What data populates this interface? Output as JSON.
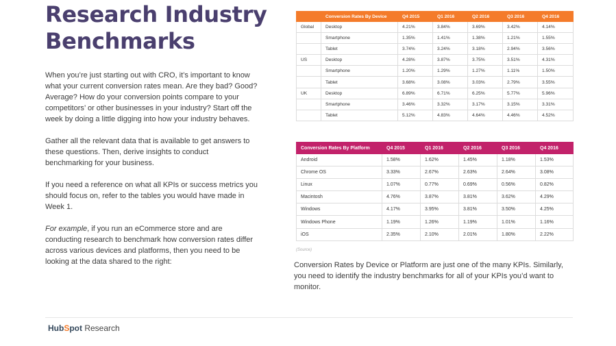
{
  "page": {
    "title_line1": "Research Industry",
    "title_line2": "Benchmarks",
    "paragraph1": "When you’re just starting out with CRO, it’s important to know what your current conversion rates mean. Are they bad? Good? Average? How do your conversion points compare to your competitors’ or other businesses in your industry? Start off the week by doing a little digging into how your industry behaves.",
    "paragraph2": "Gather all the relevant data that is available to get answers to these questions. Then, derive insights to conduct benchmarking for your business.",
    "paragraph3": "If you need a reference on what all KPIs or success metrics you should focus on, refer to the tables you would have made in Week 1.",
    "paragraph4_em": "For example",
    "paragraph4_rest": ", if you run an eCommerce store and are conducting research to benchmark how conversion rates differ across various devices and platforms, then you need to be looking at the data shared to the right:",
    "source_label": "(Source)",
    "note": "Conversion Rates by Device or Platform are just one of the many KPIs. Similarly, you need to identify the industry benchmarks for all of your KPIs you’d want to monitor."
  },
  "device_table": {
    "header_color": "#f47b2a",
    "headers": [
      "",
      "Conversion Rates By Device",
      "Q4 2015",
      "Q1 2016",
      "Q2 2016",
      "Q3 2016",
      "Q4 2016"
    ],
    "rows": [
      [
        "Global",
        "Desktop",
        "4.21%",
        "3.84%",
        "3.69%",
        "3.42%",
        "4.14%"
      ],
      [
        "",
        "Smartphone",
        "1.35%",
        "1.41%",
        "1.38%",
        "1.21%",
        "1.55%"
      ],
      [
        "",
        "Tablet",
        "3.74%",
        "3.24%",
        "3.18%",
        "2.94%",
        "3.56%"
      ],
      [
        "US",
        "Desktop",
        "4.28%",
        "3.87%",
        "3.75%",
        "3.51%",
        "4.31%"
      ],
      [
        "",
        "Smartphone",
        "1.20%",
        "1.29%",
        "1.27%",
        "1.11%",
        "1.50%"
      ],
      [
        "",
        "Tablet",
        "3.68%",
        "3.08%",
        "3.03%",
        "2.79%",
        "3.55%"
      ],
      [
        "UK",
        "Desktop",
        "6.89%",
        "6.71%",
        "6.25%",
        "5.77%",
        "5.96%"
      ],
      [
        "",
        "Smartphone",
        "3.46%",
        "3.32%",
        "3.17%",
        "3.15%",
        "3.31%"
      ],
      [
        "",
        "Tablet",
        "5.12%",
        "4.83%",
        "4.64%",
        "4.46%",
        "4.52%"
      ]
    ]
  },
  "platform_table": {
    "header_color": "#c2226a",
    "headers": [
      "Conversion Rates By Platform",
      "Q4 2015",
      "Q1 2016",
      "Q2 2016",
      "Q3 2016",
      "Q4 2016"
    ],
    "rows": [
      [
        "Android",
        "1.58%",
        "1.62%",
        "1.45%",
        "1.18%",
        "1.53%"
      ],
      [
        "Chrome OS",
        "3.33%",
        "2.67%",
        "2.63%",
        "2.64%",
        "3.08%"
      ],
      [
        "Linux",
        "1.07%",
        "0.77%",
        "0.69%",
        "0.56%",
        "0.82%"
      ],
      [
        "Macintosh",
        "4.76%",
        "3.87%",
        "3.81%",
        "3.62%",
        "4.29%"
      ],
      [
        "Windows",
        "4.17%",
        "3.95%",
        "3.81%",
        "3.50%",
        "4.25%"
      ],
      [
        "Windows Phone",
        "1.19%",
        "1.26%",
        "1.19%",
        "1.01%",
        "1.16%"
      ],
      [
        "iOS",
        "2.35%",
        "2.10%",
        "2.01%",
        "1.80%",
        "2.22%"
      ]
    ]
  },
  "footer": {
    "brand_part1": "Hub",
    "brand_sprocket": "S",
    "brand_part2": "pot",
    "suffix": " Research"
  }
}
